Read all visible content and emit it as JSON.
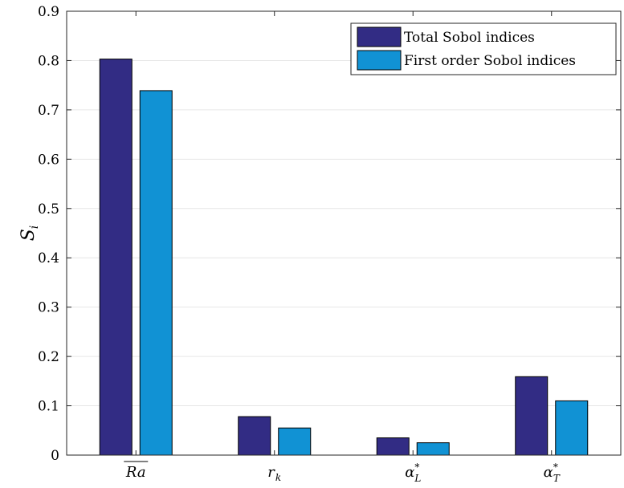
{
  "chart_data": {
    "type": "bar",
    "categories": [
      "Ra",
      "r_k",
      "α*_L",
      "α*_T"
    ],
    "category_labels": [
      {
        "main": "Ra",
        "sup": "",
        "sub": "",
        "overline": true
      },
      {
        "main": "r",
        "sup": "",
        "sub": "k",
        "overline": false
      },
      {
        "main": "α",
        "sup": "*",
        "sub": "L",
        "overline": false
      },
      {
        "main": "α",
        "sup": "*",
        "sub": "T",
        "overline": false
      }
    ],
    "series": [
      {
        "name": "Total Sobol indices",
        "values": [
          0.803,
          0.078,
          0.035,
          0.159
        ],
        "color": "#322C84"
      },
      {
        "name": "First order Sobol indices",
        "values": [
          0.739,
          0.055,
          0.025,
          0.11
        ],
        "color": "#1192D4"
      }
    ],
    "title": "",
    "xlabel": "",
    "ylabel": "S",
    "ylabel_sub": "i",
    "ylim": [
      0,
      0.9
    ],
    "yticks": [
      "0",
      "0.1",
      "0.2",
      "0.3",
      "0.4",
      "0.5",
      "0.6",
      "0.7",
      "0.8",
      "0.9"
    ],
    "grid": true,
    "legend_position": "top-right"
  }
}
